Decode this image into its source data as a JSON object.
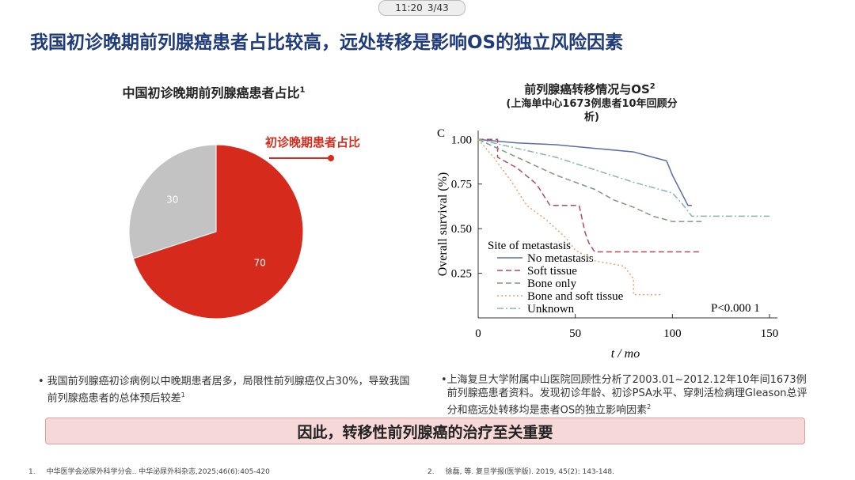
{
  "status_bar": {
    "time": "11:20",
    "page": "3/43"
  },
  "title": "我国初诊晚期前列腺癌患者占比较高，远处转移是影响OS的独立风险因素",
  "chart_data": [
    {
      "type": "pie",
      "title": "中国初诊晚期前列腺癌患者占比",
      "title_sup": "1",
      "values": [
        30,
        70
      ],
      "colors": [
        "#c3c3c3",
        "#d62b1c"
      ],
      "annotation": "初诊晚期患者占比"
    },
    {
      "type": "line",
      "title": "前列腺癌转移情况与OS",
      "title_sup": "2",
      "subtitle": "(上海单中心1673例患者10年回顾分析)",
      "panel_label": "C",
      "ylabel": "Overall survival (%)",
      "xlabel": "t / mo",
      "xlim": [
        0,
        150
      ],
      "ylim": [
        0,
        1.05
      ],
      "xticks": [
        0,
        50,
        100,
        150
      ],
      "yticks": [
        {
          "value": 0.25,
          "label": "0.25"
        },
        {
          "value": 0.5,
          "label": "0.50"
        },
        {
          "value": 0.75,
          "label": "0.75"
        },
        {
          "value": 1,
          "label": "1.00"
        }
      ],
      "legend_title": "Site of metastasis",
      "annotation": "P<0.000 1",
      "series": [
        {
          "name": "No metastasis",
          "color": "#5a6ea6",
          "style": "solid",
          "x": [
            0,
            20,
            40,
            60,
            80,
            90,
            97,
            100,
            100,
            108,
            108,
            110
          ],
          "values": [
            1,
            0.98,
            0.97,
            0.95,
            0.93,
            0.9,
            0.88,
            0.8,
            0.8,
            0.63,
            0.63,
            0.63
          ]
        },
        {
          "name": "Soft tissue",
          "color": "#b24a62",
          "style": "dashed",
          "x": [
            0,
            10,
            10,
            15,
            20,
            30,
            37,
            52,
            55,
            57,
            60,
            115
          ],
          "values": [
            1,
            1,
            0.9,
            0.87,
            0.84,
            0.75,
            0.63,
            0.63,
            0.48,
            0.42,
            0.37,
            0.37
          ]
        },
        {
          "name": "Bone only",
          "color": "#7f9a80",
          "style": "dashed",
          "x": [
            0,
            20,
            40,
            60,
            70,
            80,
            90,
            100,
            115
          ],
          "values": [
            1,
            0.9,
            0.8,
            0.72,
            0.66,
            0.62,
            0.57,
            0.54,
            0.54
          ]
        },
        {
          "name": "Bone and soft tissue",
          "color": "#eba266",
          "style": "dotted",
          "x": [
            0,
            8,
            18,
            25,
            35,
            45,
            50,
            60,
            75,
            80,
            80,
            95
          ],
          "values": [
            1,
            0.9,
            0.75,
            0.63,
            0.55,
            0.45,
            0.38,
            0.32,
            0.29,
            0.22,
            0.13,
            0.13
          ]
        },
        {
          "name": "Unknown",
          "color": "#86b5ad",
          "style": "dashdot",
          "x": [
            0,
            20,
            40,
            60,
            80,
            100,
            105,
            110,
            150
          ],
          "values": [
            1,
            0.95,
            0.9,
            0.83,
            0.76,
            0.7,
            0.64,
            0.57,
            0.57
          ]
        }
      ]
    }
  ],
  "bullets": [
    {
      "text": "我国前列腺癌初诊病例以中晚期患者居多，局限性前列腺癌仅占30%，导致我国前列腺癌患者的总体预后较差",
      "sup": "1"
    },
    {
      "text": "上海复旦大学附属中山医院回顾性分析了2003.01~2012.12年10年间1673例前列腺癌患者资料。发现初诊年龄、初诊PSA水平、穿刺活检病理Gleason总评分和癌远处转移均是患者OS的独立影响因素",
      "sup": "2"
    }
  ],
  "banner": "因此，转移性前列腺癌的治疗至关重要",
  "footnotes": [
    {
      "num": "1.",
      "text": "中华医学会泌尿外科学分会.. 中华泌尿外科杂志,2025;46(6):405-420"
    },
    {
      "num": "2.",
      "text": "徐磊, 等. 复旦学报(医学版). 2019, 45(2): 143-148."
    }
  ]
}
